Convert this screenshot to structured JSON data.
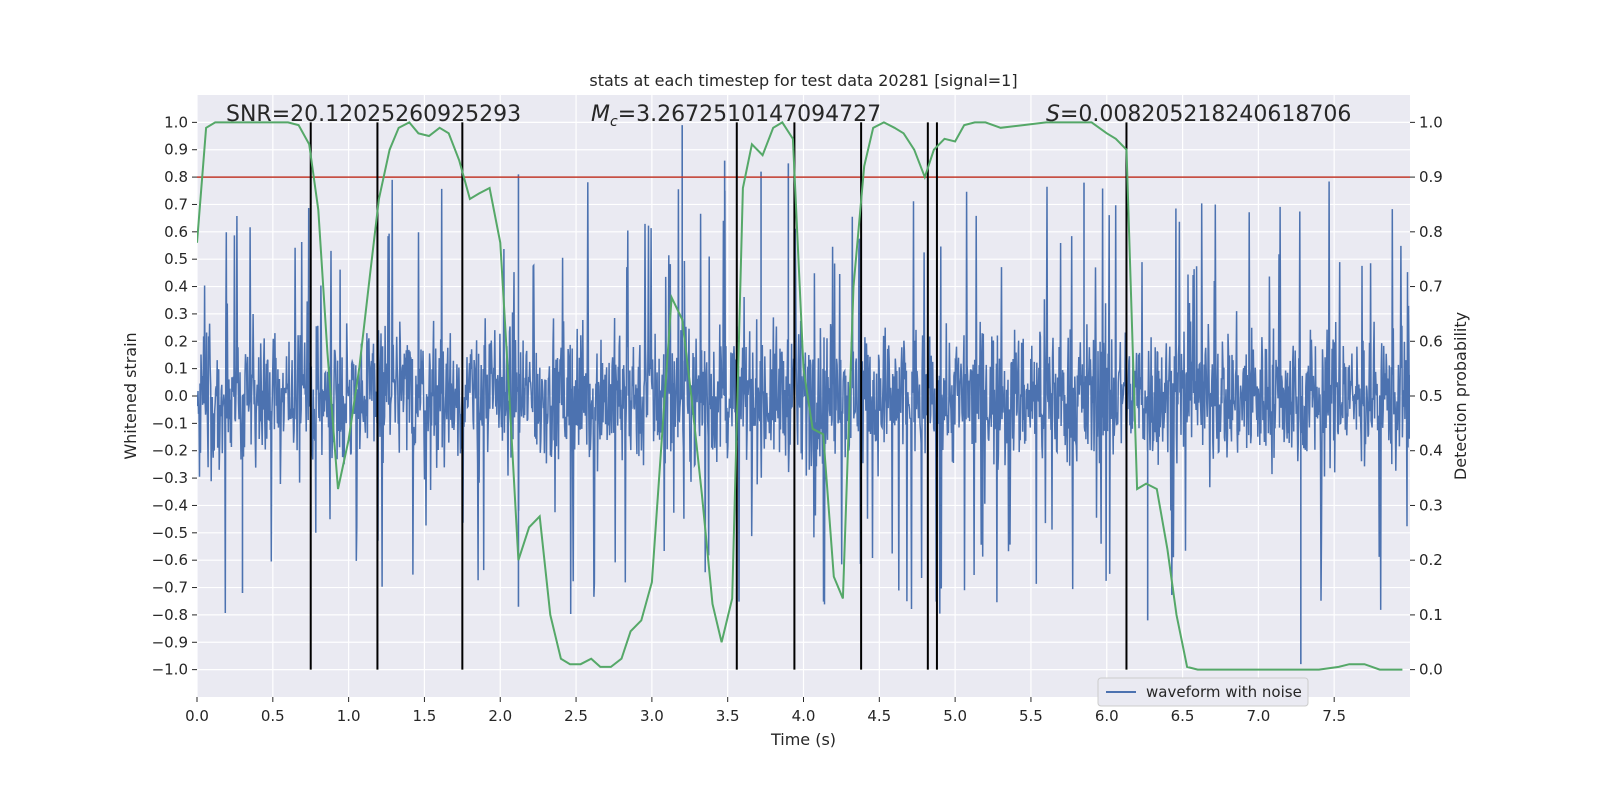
{
  "chart_data": {
    "type": "line",
    "title": "stats at each timestep for test data 20281 [signal=1]",
    "xlabel": "Time (s)",
    "ylabel_left": "Whitened strain",
    "ylabel_right": "Detection probability",
    "xlim": [
      0,
      8
    ],
    "ylim_left": [
      -1.1,
      1.1
    ],
    "ylim_right": [
      -0.05,
      1.05
    ],
    "grid": true,
    "x_ticks": [
      "0.0",
      "0.5",
      "1.0",
      "1.5",
      "2.0",
      "2.5",
      "3.0",
      "3.5",
      "4.0",
      "4.5",
      "5.0",
      "5.5",
      "6.0",
      "6.5",
      "7.0",
      "7.5"
    ],
    "y_left_ticks": [
      "1.0",
      "0.9",
      "0.8",
      "0.7",
      "0.6",
      "0.5",
      "0.4",
      "0.3",
      "0.2",
      "0.1",
      "0.0",
      "−0.1",
      "−0.2",
      "−0.3",
      "−0.4",
      "−0.5",
      "−0.6",
      "−0.7",
      "−0.8",
      "−0.9",
      "−1.0"
    ],
    "y_right_ticks": [
      "1.0",
      "0.9",
      "0.8",
      "0.7",
      "0.6",
      "0.5",
      "0.4",
      "0.3",
      "0.2",
      "0.1",
      "0.0"
    ],
    "annotations": {
      "snr": "SNR=20.12025260925293",
      "mc_symbol": "M",
      "mc_sub": "c",
      "mc_value": "=3.2672510147094727",
      "s_symbol": "S",
      "s_value": "=0.008205218240618706"
    },
    "threshold": {
      "y": 0.8,
      "axis": "left",
      "color": "#c0392b"
    },
    "event_lines_x": [
      0.75,
      1.19,
      1.75,
      3.56,
      3.94,
      4.38,
      4.82,
      4.88,
      6.13
    ],
    "colors": {
      "waveform": "#4c72b0",
      "probability": "#55a868",
      "plot_bg": "#eaeaf2",
      "grid": "#ffffff",
      "event": "#000000"
    },
    "legend": {
      "placement": "lower-right",
      "entries": [
        "waveform with noise"
      ]
    },
    "series": [
      {
        "name": "waveform with noise",
        "axis": "left",
        "kind": "noise",
        "typical_amplitude": 0.4,
        "peak_amplitude": 0.8,
        "spikes": [
          {
            "x": 3.2,
            "y": 0.99
          },
          {
            "x": 3.48,
            "y": 0.86
          },
          {
            "x": 3.72,
            "y": 0.82
          },
          {
            "x": 3.9,
            "y": 0.85
          },
          {
            "x": 2.12,
            "y": 0.81
          },
          {
            "x": 5.85,
            "y": 0.78
          },
          {
            "x": 7.28,
            "y": -0.98
          },
          {
            "x": 6.27,
            "y": -0.82
          },
          {
            "x": 2.12,
            "y": -0.77
          },
          {
            "x": 0.3,
            "y": -0.72
          }
        ]
      },
      {
        "name": "",
        "axis": "right",
        "kind": "line",
        "x": [
          0.0,
          0.06,
          0.12,
          0.2,
          0.3,
          0.4,
          0.5,
          0.6,
          0.67,
          0.74,
          0.8,
          0.86,
          0.93,
          1.0,
          1.07,
          1.14,
          1.2,
          1.27,
          1.33,
          1.4,
          1.46,
          1.53,
          1.6,
          1.66,
          1.73,
          1.8,
          1.86,
          1.93,
          2.0,
          2.06,
          2.12,
          2.19,
          2.26,
          2.33,
          2.4,
          2.46,
          2.53,
          2.6,
          2.66,
          2.73,
          2.8,
          2.86,
          2.93,
          3.0,
          3.06,
          3.13,
          3.2,
          3.26,
          3.33,
          3.4,
          3.46,
          3.53,
          3.6,
          3.66,
          3.73,
          3.8,
          3.86,
          3.93,
          4.0,
          4.06,
          4.13,
          4.2,
          4.26,
          4.33,
          4.4,
          4.46,
          4.53,
          4.6,
          4.66,
          4.73,
          4.8,
          4.86,
          4.93,
          5.0,
          5.06,
          5.13,
          5.2,
          5.3,
          5.45,
          5.6,
          5.75,
          5.9,
          6.0,
          6.06,
          6.13,
          6.2,
          6.26,
          6.33,
          6.4,
          6.46,
          6.53,
          6.6,
          6.66,
          6.8,
          7.0,
          7.2,
          7.4,
          7.53,
          7.6,
          7.7,
          7.8,
          7.9,
          7.95
        ],
        "y": [
          0.78,
          0.99,
          1.0,
          1.0,
          1.0,
          1.0,
          1.0,
          1.0,
          0.995,
          0.96,
          0.84,
          0.58,
          0.33,
          0.42,
          0.55,
          0.72,
          0.86,
          0.95,
          0.99,
          1.0,
          0.98,
          0.975,
          0.99,
          0.98,
          0.93,
          0.86,
          0.87,
          0.88,
          0.78,
          0.5,
          0.2,
          0.26,
          0.28,
          0.1,
          0.02,
          0.01,
          0.01,
          0.02,
          0.005,
          0.005,
          0.02,
          0.07,
          0.09,
          0.16,
          0.4,
          0.68,
          0.64,
          0.5,
          0.32,
          0.12,
          0.05,
          0.13,
          0.88,
          0.96,
          0.94,
          0.99,
          1.0,
          0.97,
          0.55,
          0.44,
          0.43,
          0.17,
          0.13,
          0.7,
          0.92,
          0.99,
          1.0,
          0.99,
          0.98,
          0.95,
          0.9,
          0.95,
          0.97,
          0.965,
          0.995,
          1.0,
          1.0,
          0.99,
          0.995,
          1.0,
          1.0,
          1.0,
          0.98,
          0.97,
          0.95,
          0.33,
          0.34,
          0.33,
          0.22,
          0.1,
          0.005,
          0.0,
          0.0,
          0.0,
          0.0,
          0.0,
          0.0,
          0.005,
          0.01,
          0.01,
          0.0,
          0.0,
          0.0
        ]
      }
    ]
  }
}
